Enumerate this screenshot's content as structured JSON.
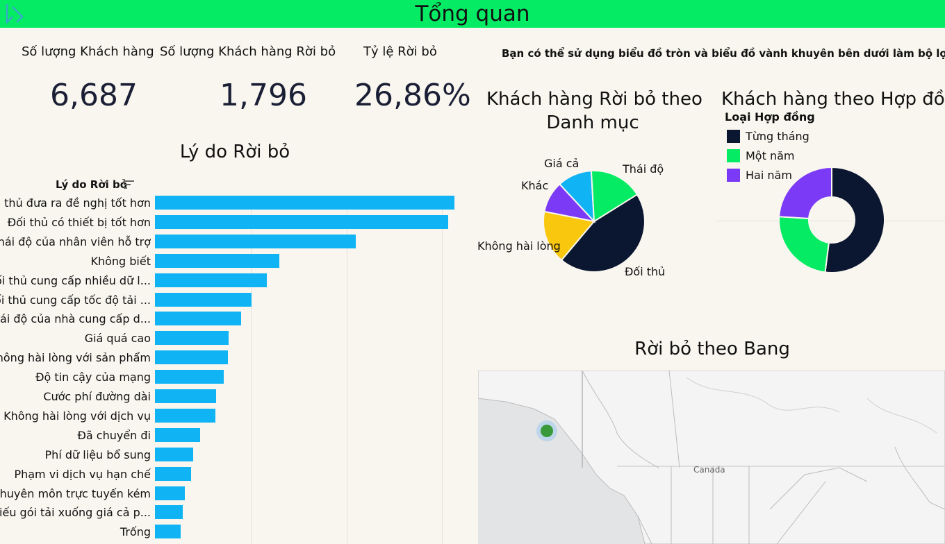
{
  "header": {
    "title": "Tổng quan"
  },
  "kpis": [
    {
      "label": "Số lượng Khách hàng",
      "value": "6,687"
    },
    {
      "label": "Số lượng Khách hàng Rời bỏ",
      "value": "1,796"
    },
    {
      "label": "Tỷ lệ Rời bỏ",
      "value": "26,86%"
    }
  ],
  "filter_note": "Bạn có thể sử dụng biểu đồ tròn và biểu đồ vành khuyên bên dưới làm bộ lọc",
  "reasons_chart": {
    "title": "Lý do Rời bỏ",
    "column_header": "Lý do Rời bỏ",
    "chart_data": {
      "type": "bar",
      "orientation": "horizontal",
      "categories": [
        "Đối thủ đưa ra đề nghị tốt hơn",
        "Đối thủ có thiết bị tốt hơn",
        "Thái độ của nhân viên hỗ trợ",
        "Không biết",
        "Đối thủ cung cấp nhiều dữ l...",
        "Đối thủ cung cấp tốc độ tải ...",
        "Thái độ của nhà cung cấp d...",
        "Giá quá cao",
        "Không hài lòng với sản phẩm",
        "Độ tin cậy của mạng",
        "Cước phí đường dài",
        "Không hài lòng với dịch vụ",
        "Đã chuyển đi",
        "Phí dữ liệu bổ sung",
        "Phạm vi dịch vụ hạn chế",
        "Chuyên môn trực tuyến kém",
        "Thiếu gói tải xuống giá cả p...",
        "Trống"
      ],
      "values": [
        313,
        306,
        210,
        130,
        117,
        101,
        90,
        77,
        76,
        72,
        64,
        63,
        47,
        40,
        38,
        31,
        29,
        27
      ],
      "xlim": [
        0,
        340
      ],
      "gridlines": [
        100,
        200,
        300
      ],
      "sorted": "descending"
    }
  },
  "category_pie": {
    "title_line1": "Khách hàng Rời bỏ theo",
    "title_line2": "Danh mục",
    "chart_data": {
      "type": "pie",
      "labels": [
        "Đối thủ",
        "Không hài lòng",
        "Khác",
        "Giá cả",
        "Thái độ"
      ],
      "values": [
        45,
        17,
        10,
        11,
        17
      ],
      "colors": [
        "#0b1631",
        "#f9c80e",
        "#7b3bf6",
        "#10b4f5",
        "#05ec64"
      ]
    }
  },
  "contract_donut": {
    "title": "Khách hàng theo Hợp đồng",
    "legend_title": "Loại Hợp đồng",
    "chart_data": {
      "type": "pie",
      "style": "donut",
      "labels": [
        "Từng tháng",
        "Một năm",
        "Hai năm"
      ],
      "values": [
        52,
        24,
        24
      ],
      "colors": [
        "#0b1631",
        "#05ec64",
        "#7b3bf6"
      ]
    }
  },
  "map": {
    "title": "Rời bỏ theo Bang",
    "country_label": "Canada",
    "marker_color": "#3a9a3a"
  }
}
